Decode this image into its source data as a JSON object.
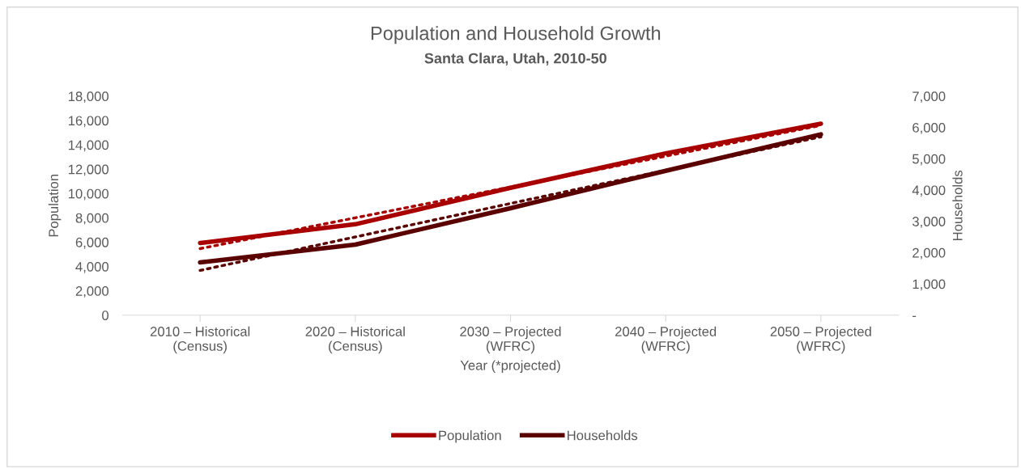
{
  "chart_data": {
    "type": "line",
    "title": "Population and Household Growth",
    "subtitle": "Santa Clara, Utah, 2010-50",
    "xlabel": "Year (*projected)",
    "ylabel": "Population",
    "y2label": "Households",
    "categories": [
      "2010 – Historical\n(Census)",
      "2020 – Historical\n(Census)",
      "2030 – Projected\n(WFRC)",
      "2040 – Projected\n(WFRC)",
      "2050 – Projected\n(WFRC)"
    ],
    "series": [
      {
        "name": "Population",
        "color": "#a80000",
        "values": [
          5930,
          7470,
          10470,
          13300,
          15730
        ]
      },
      {
        "name": "Households",
        "color": "#5a0000",
        "values": [
          1685,
          2255,
          3420,
          4615,
          5780
        ],
        "axis": "y2"
      },
      {
        "color": "#a80000",
        "values": [
          5470,
          8000,
          10530,
          13070,
          15600
        ],
        "line_style": "dotted"
      },
      {
        "color": "#5a0000",
        "values": [
          1430,
          2500,
          3570,
          4630,
          5700
        ],
        "line_style": "dotted",
        "axis": "y2"
      }
    ],
    "ylim": [
      0,
      18000
    ],
    "yticks": [
      {
        "value": 0,
        "label": "0"
      },
      {
        "value": 2000,
        "label": "2,000"
      },
      {
        "value": 4000,
        "label": "4,000"
      },
      {
        "value": 6000,
        "label": "6,000"
      },
      {
        "value": 8000,
        "label": "8,000"
      },
      {
        "value": 10000,
        "label": "10,000"
      },
      {
        "value": 12000,
        "label": "12,000"
      },
      {
        "value": 14000,
        "label": "14,000"
      },
      {
        "value": 16000,
        "label": "16,000"
      },
      {
        "value": 18000,
        "label": "18,000"
      }
    ],
    "y2lim": [
      0,
      7000
    ],
    "y2ticks": [
      {
        "value": 0,
        "label": "-"
      },
      {
        "value": 1000,
        "label": "1,000"
      },
      {
        "value": 2000,
        "label": "2,000"
      },
      {
        "value": 3000,
        "label": "3,000"
      },
      {
        "value": 4000,
        "label": "4,000"
      },
      {
        "value": 5000,
        "label": "5,000"
      },
      {
        "value": 6000,
        "label": "6,000"
      },
      {
        "value": 7000,
        "label": "7,000"
      }
    ],
    "legend": "bottom",
    "grid": false,
    "marker": "none",
    "line_style": "solid"
  }
}
